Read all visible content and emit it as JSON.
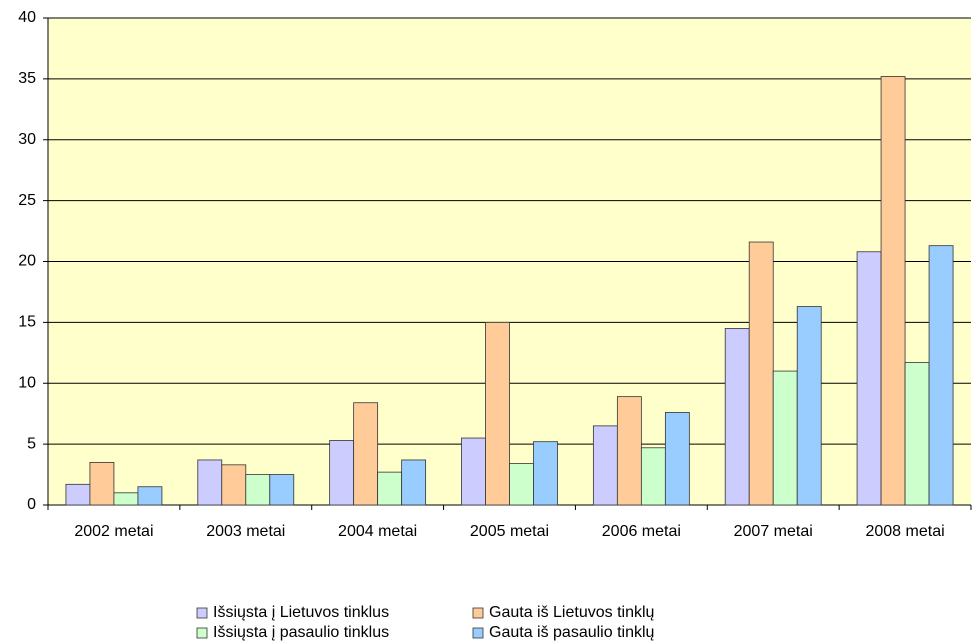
{
  "chart_data": {
    "type": "bar",
    "categories": [
      "2002 metai",
      "2003 metai",
      "2004 metai",
      "2005 metai",
      "2006 metai",
      "2007 metai",
      "2008 metai"
    ],
    "series": [
      {
        "name": "Išsiųsta į Lietuvos tinklus",
        "color": "#ccccff",
        "values": [
          1.7,
          3.7,
          5.3,
          5.5,
          6.5,
          14.5,
          20.8
        ]
      },
      {
        "name": "Gauta iš Lietuvos tinklų",
        "color": "#ffcc99",
        "values": [
          3.5,
          3.3,
          8.4,
          15.0,
          8.9,
          21.6,
          35.2
        ]
      },
      {
        "name": "Išsiųsta į pasaulio tinklus",
        "color": "#ccffcc",
        "values": [
          1.0,
          2.5,
          2.7,
          3.4,
          4.7,
          11.0,
          11.7
        ]
      },
      {
        "name": "Gauta iš pasaulio tinklų",
        "color": "#99ccff",
        "values": [
          1.5,
          2.5,
          3.7,
          5.2,
          7.6,
          16.3,
          21.3
        ]
      }
    ],
    "ylim": [
      0,
      40
    ],
    "yticks": [
      0,
      5,
      10,
      15,
      20,
      25,
      30,
      35,
      40
    ],
    "grid": true,
    "legend": "bottom",
    "plot_background": "#ffffcc"
  }
}
